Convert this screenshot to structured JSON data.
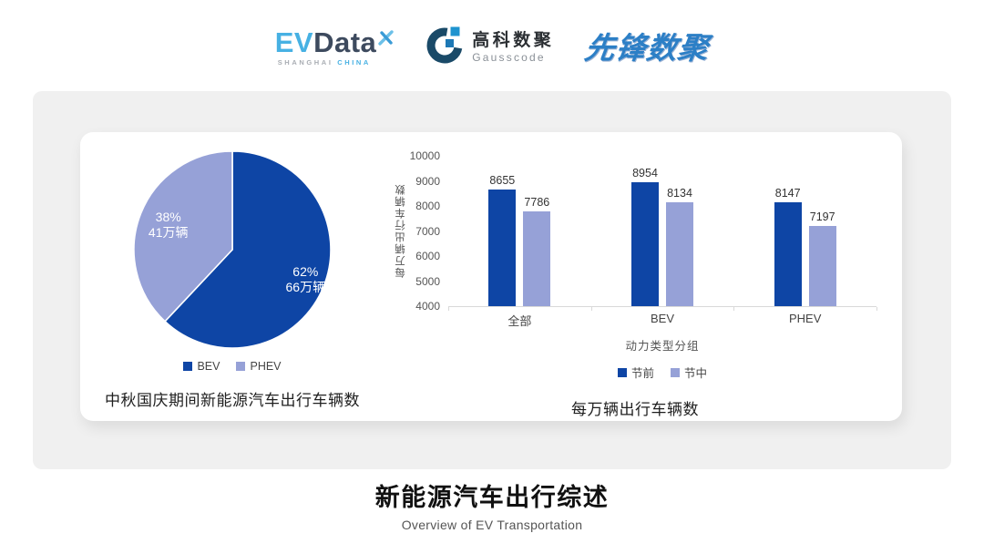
{
  "header": {
    "evdata": {
      "ev": "EV",
      "data": "Data",
      "sub_shanghai": "SHANGHAI",
      "sub_china": "CHINA"
    },
    "gausscode": {
      "name_cn": "高科数聚",
      "name_en": "Gausscode"
    },
    "xianfeng": {
      "text": "先锋数聚"
    }
  },
  "colors": {
    "series_dark": "#0e45a5",
    "series_light": "#96a1d7",
    "panel_bg": "#f0f0f0",
    "axis_line": "#d9d9d9",
    "evdata_blue": "#47b1e3",
    "evdata_slate": "#3d4a5e",
    "gauss_navy": "#1a4a68",
    "gauss_blue": "#1e93cf",
    "xianfeng_blue": "#2c7fc6"
  },
  "chart_data": [
    {
      "type": "pie",
      "title": "中秋国庆期间新能源汽车出行车辆数",
      "labels": [
        "BEV",
        "PHEV"
      ],
      "values_pct": [
        62,
        38
      ],
      "values_label": [
        "66万辆",
        "41万辆"
      ],
      "colors": [
        "#0e45a5",
        "#96a1d7"
      ],
      "start_angle_deg": 0,
      "direction": "clockwise",
      "legend_position": "bottom",
      "label_radius_factor": [
        0.8,
        0.7
      ]
    },
    {
      "type": "bar",
      "title": "每万辆出行车辆数",
      "categories": [
        "全部",
        "BEV",
        "PHEV"
      ],
      "series": [
        {
          "name": "节前",
          "values": [
            8655,
            8954,
            8147
          ],
          "color": "#0e45a5"
        },
        {
          "name": "节中",
          "values": [
            7786,
            8134,
            7197
          ],
          "color": "#96a1d7"
        }
      ],
      "xlabel": "动力类型分组",
      "ylabel": "每万辆出行车辆数",
      "ylim": [
        4000,
        10000
      ],
      "ytick_step": 1000,
      "grid": false,
      "legend_position": "bottom",
      "value_labels": true
    }
  ],
  "footer": {
    "title": "新能源汽车出行综述",
    "subtitle": "Overview of EV Transportation"
  }
}
